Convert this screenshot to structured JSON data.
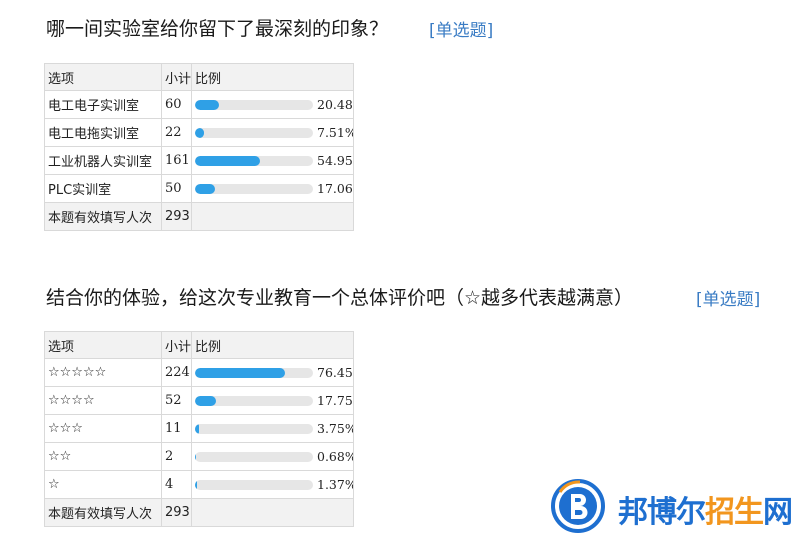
{
  "q1": {
    "title": "哪一间实验室给你留下了最深刻的印象？",
    "type": "[单选题]",
    "headers": [
      "选项",
      "小计",
      "比例"
    ],
    "rows": [
      {
        "option": "电工电子实训室",
        "count": "60",
        "pct": "20.48%",
        "ratio": 0.2048
      },
      {
        "option": "电工电拖实训室",
        "count": "22",
        "pct": "7.51%",
        "ratio": 0.0751
      },
      {
        "option": "工业机器人实训室",
        "count": "161",
        "pct": "54.95%",
        "ratio": 0.5495
      },
      {
        "option": "PLC实训室",
        "count": "50",
        "pct": "17.06%",
        "ratio": 0.1706
      }
    ],
    "total_label": "本题有效填写人次",
    "total": "293"
  },
  "q2": {
    "title": "结合你的体验，给这次专业教育一个总体评价吧（☆越多代表越满意）",
    "type": "[单选题]",
    "headers": [
      "选项",
      "小计",
      "比例"
    ],
    "rows": [
      {
        "option": "☆☆☆☆☆",
        "count": "224",
        "pct": "76.45%",
        "ratio": 0.7645
      },
      {
        "option": "☆☆☆☆",
        "count": "52",
        "pct": "17.75%",
        "ratio": 0.1775
      },
      {
        "option": "☆☆☆",
        "count": "11",
        "pct": "3.75%",
        "ratio": 0.0375
      },
      {
        "option": "☆☆",
        "count": "2",
        "pct": "0.68%",
        "ratio": 0.0068
      },
      {
        "option": "☆",
        "count": "4",
        "pct": "1.37%",
        "ratio": 0.0137
      }
    ],
    "total_label": "本题有效填写人次",
    "total": "293"
  },
  "watermark": {
    "text_a": "邦博尔",
    "text_b": "招生",
    "text_c": "网",
    "colors": {
      "blue": "#1e6fd0",
      "orange": "#f2961e"
    }
  }
}
